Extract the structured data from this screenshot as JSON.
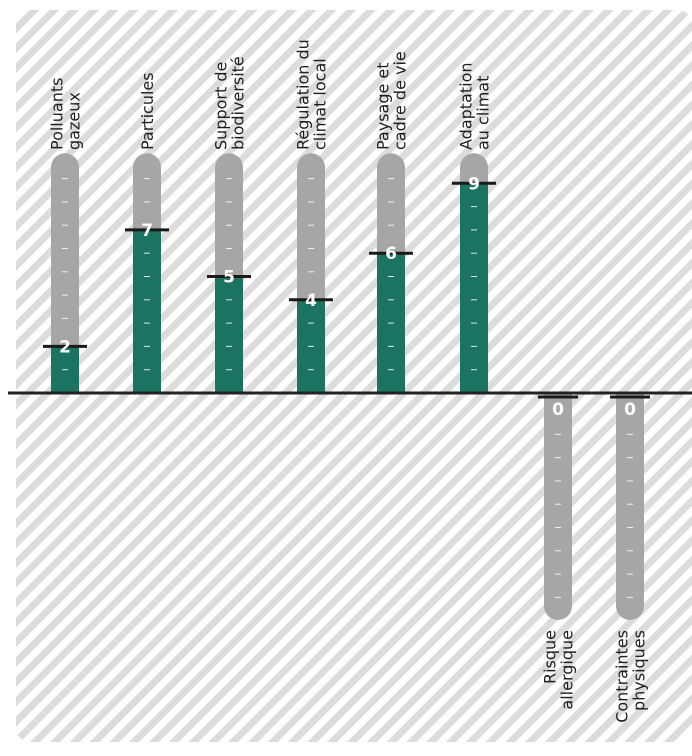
{
  "chart_data": {
    "type": "bar",
    "ylim": [
      0,
      9
    ],
    "colors": {
      "positive_fill": "#1b7362",
      "track_fill": "#a6a6a6",
      "background_stripe": "#dcdcdc",
      "axis": "#222222"
    },
    "positive": [
      {
        "lines": [
          "Polluants",
          "gazeux"
        ],
        "value": 2,
        "value_label": "2"
      },
      {
        "lines": [
          "Particules"
        ],
        "value": 7,
        "value_label": "7"
      },
      {
        "lines": [
          "Support de",
          "biodiversité"
        ],
        "value": 5,
        "value_label": "5"
      },
      {
        "lines": [
          "Régulation du",
          "climat local"
        ],
        "value": 4,
        "value_label": "4"
      },
      {
        "lines": [
          "Paysage et",
          "cadre de vie"
        ],
        "value": 6,
        "value_label": "6"
      },
      {
        "lines": [
          "Adaptation",
          "au climat"
        ],
        "value": 9,
        "value_label": "9"
      }
    ],
    "negative": [
      {
        "lines": [
          "Risque",
          "allergique"
        ],
        "value": 0,
        "value_label": "0"
      },
      {
        "lines": [
          "Contraintes",
          "physiques"
        ],
        "value": 0,
        "value_label": "0"
      }
    ]
  }
}
